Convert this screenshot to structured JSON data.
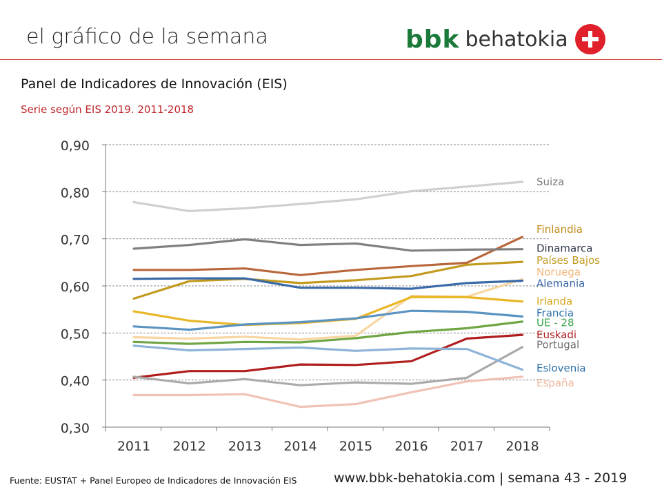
{
  "header": {
    "title": "el gráfico de la semana",
    "logo_bbk": "bbk",
    "logo_behatokia": "behatokia"
  },
  "chart_data": {
    "type": "line",
    "title": "Panel de Indicadores de Innovación (EIS)",
    "subtitle": "Serie según EIS 2019. 2011-2018",
    "x": [
      "2011",
      "2012",
      "2013",
      "2014",
      "2015",
      "2016",
      "2017",
      "2018"
    ],
    "ylim": [
      0.3,
      0.9
    ],
    "yticks": [
      "0,30",
      "0,40",
      "0,50",
      "0,60",
      "0,70",
      "0,80",
      "0,90"
    ],
    "ytick_values": [
      0.3,
      0.4,
      0.5,
      0.6,
      0.7,
      0.8,
      0.9
    ],
    "grid": "horizontal dashed",
    "legend": "right, inline labels",
    "series": [
      {
        "name": "Suiza",
        "color": "#cfcfcf",
        "label_color": "#7a7a7a",
        "values": [
          0.778,
          0.759,
          0.765,
          0.774,
          0.784,
          0.801,
          0.811,
          0.821
        ]
      },
      {
        "name": "Finlandia",
        "color": "#b8673a",
        "label_color": "#c08a1a",
        "values": [
          0.634,
          0.634,
          0.637,
          0.623,
          0.634,
          0.642,
          0.649,
          0.704
        ]
      },
      {
        "name": "Dinamarca",
        "color": "#808080",
        "label_color": "#2c3547",
        "values": [
          0.679,
          0.687,
          0.699,
          0.687,
          0.69,
          0.675,
          0.677,
          0.678
        ]
      },
      {
        "name": "Países Bajos",
        "color": "#c29a1e",
        "label_color": "#c29a1e",
        "values": [
          0.573,
          0.61,
          0.615,
          0.606,
          0.612,
          0.621,
          0.645,
          0.651
        ]
      },
      {
        "name": "Noruega",
        "color": "#f7d6a2",
        "label_color": "#f3b77a",
        "values": [
          0.491,
          0.488,
          0.492,
          0.486,
          0.494,
          0.579,
          0.577,
          0.614
        ]
      },
      {
        "name": "Alemania",
        "color": "#3a69a8",
        "label_color": "#3a69a8",
        "values": [
          0.615,
          0.616,
          0.616,
          0.596,
          0.596,
          0.594,
          0.606,
          0.611
        ]
      },
      {
        "name": "Irlanda",
        "color": "#e8b627",
        "label_color": "#d4a514",
        "values": [
          0.546,
          0.526,
          0.517,
          0.521,
          0.53,
          0.576,
          0.576,
          0.567
        ]
      },
      {
        "name": "Francia",
        "color": "#5b93c1",
        "label_color": "#2a6fa8",
        "values": [
          0.514,
          0.507,
          0.518,
          0.523,
          0.531,
          0.547,
          0.545,
          0.535
        ]
      },
      {
        "name": "UE - 28",
        "color": "#6fa542",
        "label_color": "#3aa54b",
        "values": [
          0.481,
          0.477,
          0.481,
          0.48,
          0.489,
          0.502,
          0.51,
          0.524
        ]
      },
      {
        "name": "Euskadi",
        "color": "#b01e1e",
        "label_color": "#b01e1e",
        "values": [
          0.405,
          0.419,
          0.419,
          0.433,
          0.432,
          0.44,
          0.488,
          0.496
        ]
      },
      {
        "name": "Portugal",
        "color": "#aaaaaa",
        "label_color": "#6f6f6f",
        "values": [
          0.407,
          0.393,
          0.402,
          0.389,
          0.395,
          0.392,
          0.405,
          0.47
        ]
      },
      {
        "name": "Eslovenia",
        "color": "#8db3d8",
        "label_color": "#2a6fa8",
        "values": [
          0.473,
          0.463,
          0.466,
          0.469,
          0.462,
          0.467,
          0.466,
          0.422
        ]
      },
      {
        "name": "España",
        "color": "#f0c2b6",
        "label_color": "#f0b79e",
        "values": [
          0.368,
          0.368,
          0.37,
          0.343,
          0.349,
          0.374,
          0.397,
          0.407
        ]
      }
    ]
  },
  "footer": {
    "source": "Fuente:  EUSTAT + Panel Europeo de Indicadores de Innovación EIS",
    "website": "www.bbk-behatokia.com | semana 43 - 2019"
  }
}
